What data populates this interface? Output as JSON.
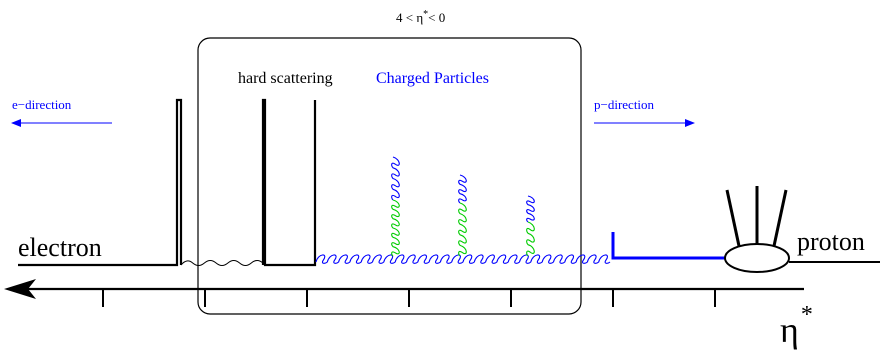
{
  "labels": {
    "eta_range": "4 < η",
    "eta_range_star": "*",
    "eta_range_tail": "< 0",
    "hard_scattering": "hard scattering",
    "charged_particles": "Charged Particles",
    "e_direction": "e−direction",
    "p_direction": "p−direction",
    "electron": "electron",
    "proton": "proton",
    "axis_symbol": "η",
    "axis_star": "*"
  },
  "colors": {
    "black": "#000000",
    "blue": "#0000ff",
    "green": "#00cc00"
  },
  "icons": {
    "axis_arrow": "left-arrow-icon",
    "e_arrow": "left-arrow-icon",
    "p_arrow": "right-arrow-icon"
  }
}
